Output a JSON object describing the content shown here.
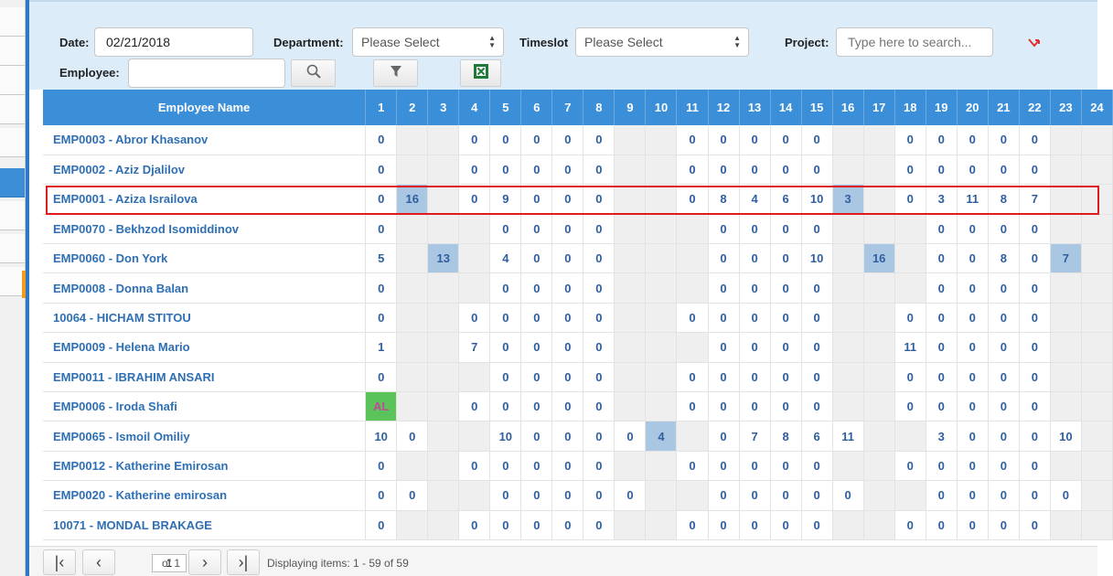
{
  "filters": {
    "date_label": "Date:",
    "date_value": "02/21/2018",
    "department_label": "Department:",
    "department_value": "Please Select",
    "timeslot_label": "Timeslot",
    "timeslot_value": "Please Select",
    "project_label": "Project:",
    "project_placeholder": "Type here to search...",
    "employee_label": "Employee:",
    "employee_value": ""
  },
  "icons": {
    "search": "magnifier",
    "filter": "funnel",
    "export": "excel-icon",
    "clear": "red-arrow"
  },
  "grid": {
    "name_header": "Employee Name",
    "day_headers": [
      "1",
      "2",
      "3",
      "4",
      "5",
      "6",
      "7",
      "8",
      "9",
      "10",
      "11",
      "12",
      "13",
      "14",
      "15",
      "16",
      "17",
      "18",
      "19",
      "20",
      "21",
      "22",
      "23",
      "24"
    ],
    "rows": [
      {
        "name": "EMP0003 - Abror Khasanov",
        "cells": [
          "0",
          "",
          "",
          "0",
          "0",
          "0",
          "0",
          "0",
          "",
          "",
          "0",
          "0",
          "0",
          "0",
          "0",
          "",
          "",
          "0",
          "0",
          "0",
          "0",
          "0",
          "",
          ""
        ]
      },
      {
        "name": "EMP0002 - Aziz Djalilov",
        "cells": [
          "0",
          "",
          "",
          "0",
          "0",
          "0",
          "0",
          "0",
          "",
          "",
          "0",
          "0",
          "0",
          "0",
          "0",
          "",
          "",
          "0",
          "0",
          "0",
          "0",
          "0",
          "",
          ""
        ]
      },
      {
        "name": "EMP0001 - Aziza Israilova",
        "selected": true,
        "cells": [
          "0",
          "16",
          "",
          "0",
          "9",
          "0",
          "0",
          "0",
          "",
          "",
          "0",
          "8",
          "4",
          "6",
          "10",
          "3",
          "",
          "0",
          "3",
          "11",
          "8",
          "7",
          "",
          ""
        ],
        "highlight": [
          1,
          15
        ]
      },
      {
        "name": "EMP0070 - Bekhzod Isomiddinov",
        "cells": [
          "0",
          "",
          "",
          "",
          "0",
          "0",
          "0",
          "0",
          "",
          "",
          "",
          "0",
          "0",
          "0",
          "0",
          "",
          "",
          "",
          "0",
          "0",
          "0",
          "0",
          "",
          ""
        ]
      },
      {
        "name": "EMP0060 - Don York",
        "cells": [
          "5",
          "",
          "13",
          "",
          "4",
          "0",
          "0",
          "0",
          "",
          "",
          "",
          "0",
          "0",
          "0",
          "10",
          "",
          "16",
          "",
          "0",
          "0",
          "8",
          "0",
          "7",
          ""
        ],
        "highlight": [
          2,
          16,
          22
        ]
      },
      {
        "name": "EMP0008 - Donna Balan",
        "cells": [
          "0",
          "",
          "",
          "",
          "0",
          "0",
          "0",
          "0",
          "",
          "",
          "",
          "0",
          "0",
          "0",
          "0",
          "",
          "",
          "",
          "0",
          "0",
          "0",
          "0",
          "",
          ""
        ]
      },
      {
        "name": "10064 - HICHAM STITOU",
        "cells": [
          "0",
          "",
          "",
          "0",
          "0",
          "0",
          "0",
          "0",
          "",
          "",
          "0",
          "0",
          "0",
          "0",
          "0",
          "",
          "",
          "0",
          "0",
          "0",
          "0",
          "0",
          "",
          ""
        ]
      },
      {
        "name": "EMP0009 - Helena Mario",
        "cells": [
          "1",
          "",
          "",
          "7",
          "0",
          "0",
          "0",
          "0",
          "",
          "",
          "",
          "0",
          "0",
          "0",
          "0",
          "",
          "",
          "11",
          "0",
          "0",
          "0",
          "0",
          "",
          ""
        ]
      },
      {
        "name": "EMP0011 - IBRAHIM ANSARI",
        "cells": [
          "0",
          "",
          "",
          "",
          "0",
          "0",
          "0",
          "0",
          "",
          "",
          "0",
          "0",
          "0",
          "0",
          "0",
          "",
          "",
          "0",
          "0",
          "0",
          "0",
          "0",
          "",
          ""
        ]
      },
      {
        "name": "EMP0006 - Iroda Shafi",
        "cells": [
          "AL",
          "",
          "",
          "0",
          "0",
          "0",
          "0",
          "0",
          "",
          "",
          "0",
          "0",
          "0",
          "0",
          "0",
          "",
          "",
          "0",
          "0",
          "0",
          "0",
          "0",
          "",
          ""
        ],
        "al": [
          0
        ]
      },
      {
        "name": "EMP0065 - Ismoil Omiliy",
        "cells": [
          "10",
          "0",
          "",
          "",
          "10",
          "0",
          "0",
          "0",
          "0",
          "4",
          "",
          "0",
          "7",
          "8",
          "6",
          "11",
          "",
          "",
          "3",
          "0",
          "0",
          "0",
          "10",
          ""
        ],
        "highlight": [
          9
        ]
      },
      {
        "name": "EMP0012 - Katherine Emirosan",
        "cells": [
          "0",
          "",
          "",
          "0",
          "0",
          "0",
          "0",
          "0",
          "",
          "",
          "0",
          "0",
          "0",
          "0",
          "0",
          "",
          "",
          "0",
          "0",
          "0",
          "0",
          "0",
          "",
          ""
        ]
      },
      {
        "name": "EMP0020 - Katherine emirosan",
        "cells": [
          "0",
          "0",
          "",
          "",
          "0",
          "0",
          "0",
          "0",
          "0",
          "",
          "",
          "0",
          "0",
          "0",
          "0",
          "0",
          "",
          "",
          "0",
          "0",
          "0",
          "0",
          "0",
          ""
        ]
      },
      {
        "name": "10071 - MONDAL BRAKAGE",
        "cells": [
          "0",
          "",
          "",
          "0",
          "0",
          "0",
          "0",
          "0",
          "",
          "",
          "0",
          "0",
          "0",
          "0",
          "0",
          "",
          "",
          "0",
          "0",
          "0",
          "0",
          "0",
          "",
          ""
        ]
      }
    ]
  },
  "pager": {
    "page_value": "1",
    "of_text": "of 1",
    "status_text": "Displaying items: 1 - 59 of 59"
  },
  "colors": {
    "header_blue": "#3b8fd9",
    "filter_bg": "#dcedf9",
    "highlight_cell": "#a9c6e3",
    "leave_cell": "#5ac45a",
    "selection_outline": "#e01b1b"
  }
}
